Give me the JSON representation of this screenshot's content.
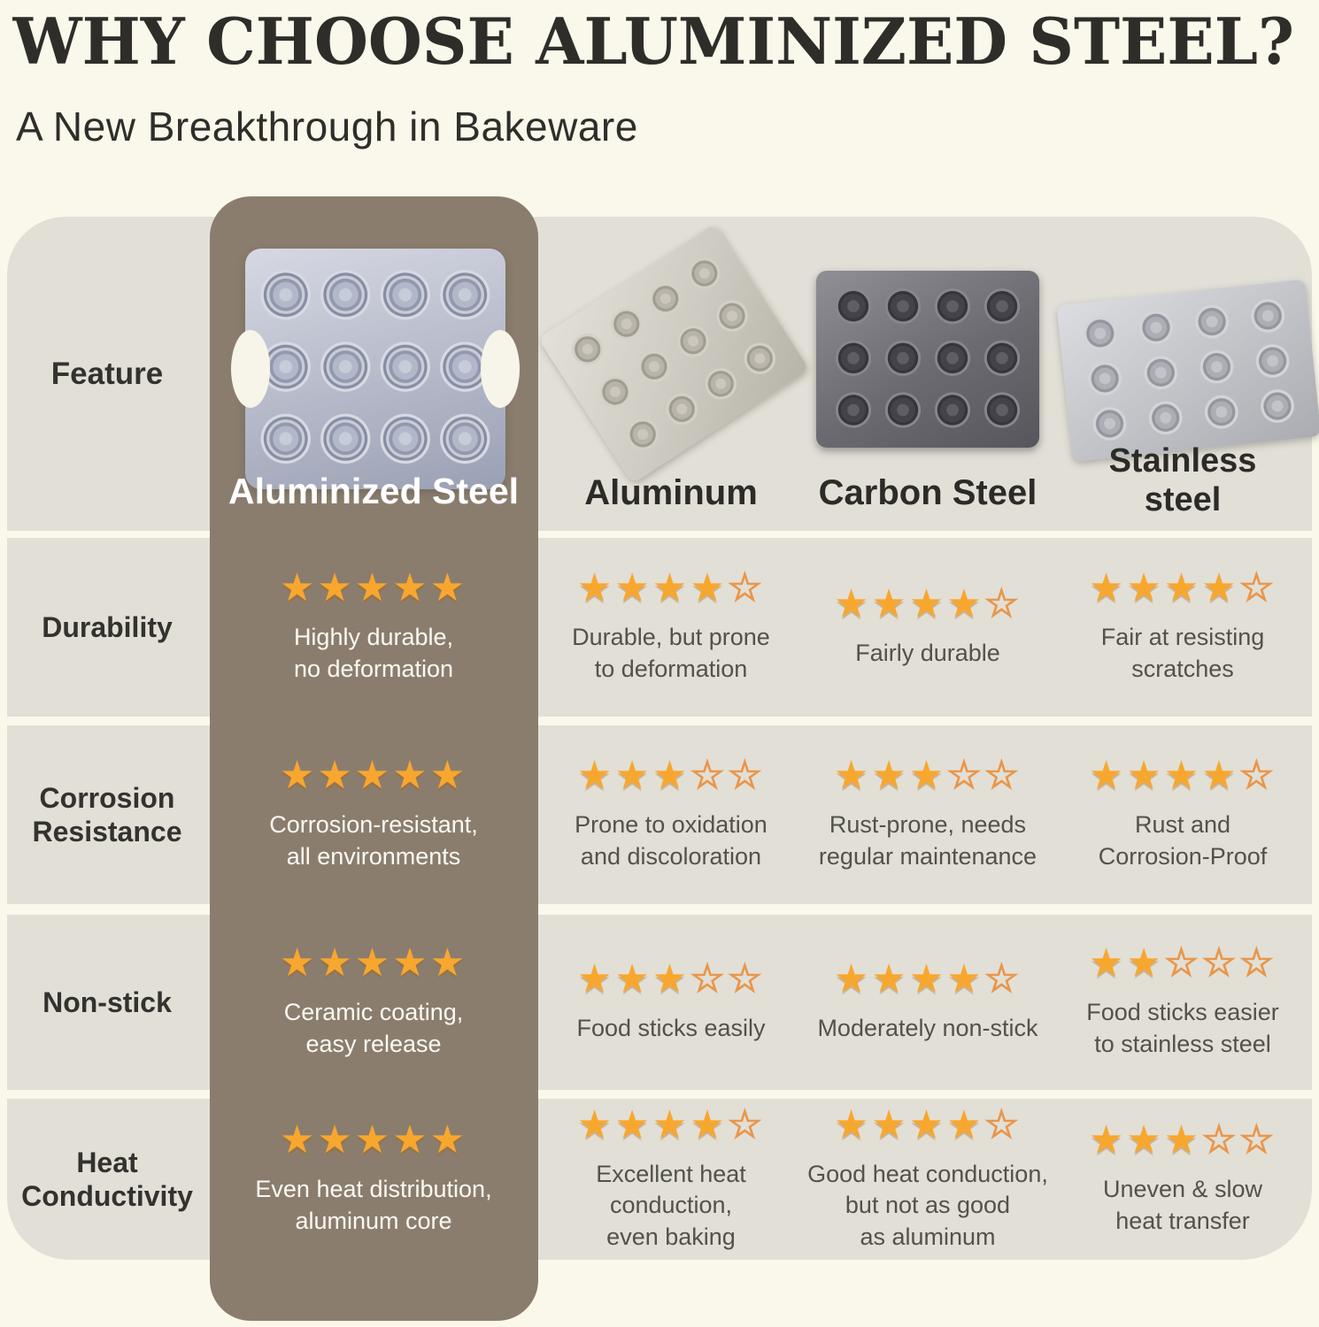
{
  "page": {
    "title": "WHY CHOOSE ALUMINIZED STEEL?",
    "subtitle": "A New Breakthrough in Bakeware"
  },
  "table": {
    "feature_header": "Feature",
    "star_max": 5,
    "columns": [
      {
        "label": "Aluminized Steel",
        "highlight": true,
        "pan_image": "aluminized-steel-muffin-pan"
      },
      {
        "label": "Aluminum",
        "highlight": false,
        "pan_image": "aluminum-muffin-pan"
      },
      {
        "label": "Carbon Steel",
        "highlight": false,
        "pan_image": "carbon-steel-muffin-pan"
      },
      {
        "label": "Stainless\nsteel",
        "highlight": false,
        "pan_image": "stainless-steel-muffin-pan"
      }
    ],
    "rows": [
      {
        "feature": "Durability",
        "cells": [
          {
            "stars": 5,
            "text": "Highly durable,\nno deformation"
          },
          {
            "stars": 4,
            "text": "Durable, but prone\nto deformation"
          },
          {
            "stars": 4,
            "text": "Fairly durable"
          },
          {
            "stars": 4,
            "text": "Fair at resisting\nscratches"
          }
        ]
      },
      {
        "feature": "Corrosion\nResistance",
        "cells": [
          {
            "stars": 5,
            "text": "Corrosion-resistant,\nall environments"
          },
          {
            "stars": 3,
            "text": "Prone to oxidation\nand discoloration"
          },
          {
            "stars": 3,
            "text": "Rust-prone, needs\nregular maintenance"
          },
          {
            "stars": 4,
            "text": "Rust and\nCorrosion-Proof"
          }
        ]
      },
      {
        "feature": "Non-stick",
        "cells": [
          {
            "stars": 5,
            "text": "Ceramic coating,\neasy release"
          },
          {
            "stars": 3,
            "text": "Food sticks easily"
          },
          {
            "stars": 4,
            "text": "Moderately non-stick"
          },
          {
            "stars": 2,
            "text": "Food sticks easier\nto stainless steel"
          }
        ]
      },
      {
        "feature": "Heat\nConductivity",
        "cells": [
          {
            "stars": 5,
            "text": "Even heat distribution,\naluminum core"
          },
          {
            "stars": 4,
            "text": "Excellent heat\nconduction,\neven baking"
          },
          {
            "stars": 4,
            "text": "Good heat conduction,\nbut not as good\nas aluminum"
          },
          {
            "stars": 3,
            "text": "Uneven & slow\nheat transfer"
          }
        ]
      }
    ]
  },
  "chart_data": {
    "type": "table",
    "title": "WHY CHOOSE ALUMINIZED STEEL?",
    "subtitle": "A New Breakthrough in Bakeware",
    "columns": [
      "Aluminized Steel",
      "Aluminum",
      "Carbon Steel",
      "Stainless steel"
    ],
    "row_features": [
      "Durability",
      "Corrosion Resistance",
      "Non-stick",
      "Heat Conductivity"
    ],
    "star_ratings": [
      [
        5,
        4,
        4,
        4
      ],
      [
        5,
        3,
        3,
        4
      ],
      [
        5,
        3,
        4,
        2
      ],
      [
        5,
        4,
        4,
        3
      ]
    ],
    "rating_scale": 5,
    "legend_position": "none",
    "grid": false
  },
  "colors": {
    "background": "#FAF8EB",
    "row_band": "#E2DFD6",
    "highlight_column": "#8B7D6E",
    "star_filled": "#F8A72E",
    "star_empty_outline": "#E9964A",
    "title_text": "#2E2D2A",
    "body_text": "#53514C",
    "highlight_text": "#FFFFFF"
  }
}
